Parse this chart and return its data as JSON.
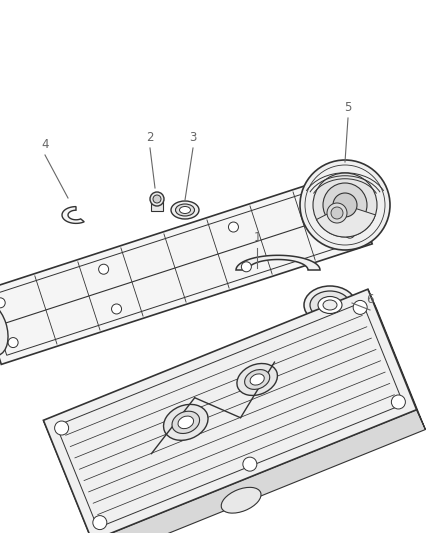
{
  "background_color": "#ffffff",
  "line_color": "#333333",
  "label_color": "#666666",
  "figsize": [
    4.38,
    5.33
  ],
  "dpi": 100,
  "label_fontsize": 8.5
}
